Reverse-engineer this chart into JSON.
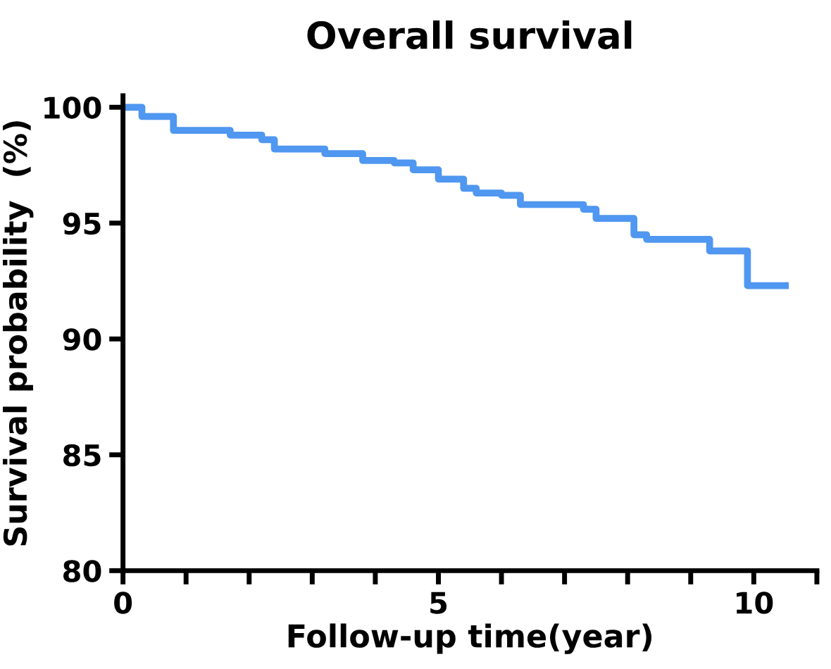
{
  "chart_data": {
    "type": "step",
    "title": "Overall survival",
    "xlabel": "Follow-up time(year)",
    "ylabel": "Survival probability  (%)",
    "x": [
      0,
      0.3,
      0.8,
      1.7,
      2.2,
      2.4,
      3.2,
      3.8,
      4.3,
      4.6,
      5.0,
      5.4,
      5.6,
      6.0,
      6.3,
      7.0,
      7.3,
      7.5,
      8.0,
      8.1,
      8.3,
      9.3,
      9.9,
      10.5
    ],
    "series": [
      {
        "color": "#4f97f0",
        "values": [
          100,
          99.6,
          99.0,
          98.8,
          98.6,
          98.2,
          98.0,
          97.7,
          97.6,
          97.3,
          96.9,
          96.5,
          96.3,
          96.2,
          95.8,
          95.8,
          95.6,
          95.2,
          95.2,
          94.5,
          94.3,
          93.8,
          92.3,
          92.3
        ]
      }
    ],
    "xlim": [
      0,
      11
    ],
    "ylim": [
      80,
      100.5
    ],
    "xticks": [
      0,
      {
        "value": 1,
        "label": null
      },
      {
        "value": 2,
        "label": null
      },
      {
        "value": 3,
        "label": null
      },
      {
        "value": 4,
        "label": null
      },
      5,
      {
        "value": 6,
        "label": null
      },
      {
        "value": 7,
        "label": null
      },
      {
        "value": 8,
        "label": null
      },
      {
        "value": 9,
        "label": null
      },
      10,
      {
        "value": 11,
        "label": null
      }
    ],
    "yticks": [
      80,
      85,
      90,
      95,
      100
    ],
    "grid": false,
    "legend": false
  }
}
